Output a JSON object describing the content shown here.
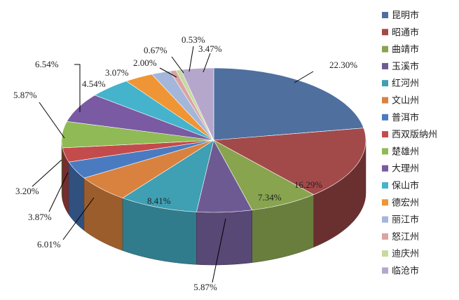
{
  "chart_data": {
    "type": "pie",
    "title": "",
    "legend_position": "right",
    "series": [
      {
        "name": "昆明市",
        "label": "22.30%",
        "value": 22.3,
        "color": "#4F6F9F"
      },
      {
        "name": "昭通市",
        "label": "16.29%",
        "value": 16.29,
        "color": "#A24A49"
      },
      {
        "name": "曲靖市",
        "label": "7.34%",
        "value": 7.34,
        "color": "#88A44F"
      },
      {
        "name": "玉溪市",
        "label": "5.87%",
        "value": 5.87,
        "color": "#6E5A93"
      },
      {
        "name": "红河州",
        "label": "8.41%",
        "value": 8.41,
        "color": "#3F9FB3"
      },
      {
        "name": "文山州",
        "label": "6.01%",
        "value": 6.01,
        "color": "#D9823F"
      },
      {
        "name": "普洱市",
        "label": "3.87%",
        "value": 3.87,
        "color": "#4A7BC1"
      },
      {
        "name": "西双版纳州",
        "label": "3.20%",
        "value": 3.2,
        "color": "#C44B4B"
      },
      {
        "name": "楚雄州",
        "label": "5.87%",
        "value": 5.87,
        "color": "#8FBA55"
      },
      {
        "name": "大理州",
        "label": "6.54%",
        "value": 6.54,
        "color": "#7A5AA3"
      },
      {
        "name": "保山市",
        "label": "4.54%",
        "value": 4.54,
        "color": "#45B3CB"
      },
      {
        "name": "德宏州",
        "label": "3.07%",
        "value": 3.07,
        "color": "#EF9535"
      },
      {
        "name": "丽江市",
        "label": "2.00%",
        "value": 2.0,
        "color": "#A4B6DA"
      },
      {
        "name": "怒江州",
        "label": "0.67%",
        "value": 0.67,
        "color": "#DBA3A2"
      },
      {
        "name": "迪庆州",
        "label": "0.53%",
        "value": 0.53,
        "color": "#C6DA9F"
      },
      {
        "name": "临沧市",
        "label": "3.47%",
        "value": 3.47,
        "color": "#B5A7CC"
      }
    ]
  }
}
